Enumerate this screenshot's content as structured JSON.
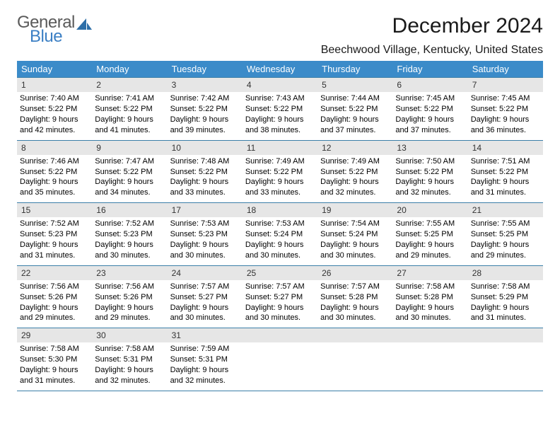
{
  "logo": {
    "text_general": "General",
    "text_blue": "Blue"
  },
  "header": {
    "title": "December 2024",
    "location": "Beechwood Village, Kentucky, United States"
  },
  "colors": {
    "header_bg": "#3b8bc9",
    "header_text": "#ffffff",
    "daynum_bg": "#e6e6e6",
    "cell_border": "#3b7fa8",
    "logo_gray": "#5a5a5a",
    "logo_blue": "#3b7fc4",
    "sail_fill": "#2e6fa8"
  },
  "weekdays": [
    "Sunday",
    "Monday",
    "Tuesday",
    "Wednesday",
    "Thursday",
    "Friday",
    "Saturday"
  ],
  "days": {
    "1": {
      "sunrise": "7:40 AM",
      "sunset": "5:22 PM",
      "daylight": "9 hours and 42 minutes."
    },
    "2": {
      "sunrise": "7:41 AM",
      "sunset": "5:22 PM",
      "daylight": "9 hours and 41 minutes."
    },
    "3": {
      "sunrise": "7:42 AM",
      "sunset": "5:22 PM",
      "daylight": "9 hours and 39 minutes."
    },
    "4": {
      "sunrise": "7:43 AM",
      "sunset": "5:22 PM",
      "daylight": "9 hours and 38 minutes."
    },
    "5": {
      "sunrise": "7:44 AM",
      "sunset": "5:22 PM",
      "daylight": "9 hours and 37 minutes."
    },
    "6": {
      "sunrise": "7:45 AM",
      "sunset": "5:22 PM",
      "daylight": "9 hours and 37 minutes."
    },
    "7": {
      "sunrise": "7:45 AM",
      "sunset": "5:22 PM",
      "daylight": "9 hours and 36 minutes."
    },
    "8": {
      "sunrise": "7:46 AM",
      "sunset": "5:22 PM",
      "daylight": "9 hours and 35 minutes."
    },
    "9": {
      "sunrise": "7:47 AM",
      "sunset": "5:22 PM",
      "daylight": "9 hours and 34 minutes."
    },
    "10": {
      "sunrise": "7:48 AM",
      "sunset": "5:22 PM",
      "daylight": "9 hours and 33 minutes."
    },
    "11": {
      "sunrise": "7:49 AM",
      "sunset": "5:22 PM",
      "daylight": "9 hours and 33 minutes."
    },
    "12": {
      "sunrise": "7:49 AM",
      "sunset": "5:22 PM",
      "daylight": "9 hours and 32 minutes."
    },
    "13": {
      "sunrise": "7:50 AM",
      "sunset": "5:22 PM",
      "daylight": "9 hours and 32 minutes."
    },
    "14": {
      "sunrise": "7:51 AM",
      "sunset": "5:22 PM",
      "daylight": "9 hours and 31 minutes."
    },
    "15": {
      "sunrise": "7:52 AM",
      "sunset": "5:23 PM",
      "daylight": "9 hours and 31 minutes."
    },
    "16": {
      "sunrise": "7:52 AM",
      "sunset": "5:23 PM",
      "daylight": "9 hours and 30 minutes."
    },
    "17": {
      "sunrise": "7:53 AM",
      "sunset": "5:23 PM",
      "daylight": "9 hours and 30 minutes."
    },
    "18": {
      "sunrise": "7:53 AM",
      "sunset": "5:24 PM",
      "daylight": "9 hours and 30 minutes."
    },
    "19": {
      "sunrise": "7:54 AM",
      "sunset": "5:24 PM",
      "daylight": "9 hours and 30 minutes."
    },
    "20": {
      "sunrise": "7:55 AM",
      "sunset": "5:25 PM",
      "daylight": "9 hours and 29 minutes."
    },
    "21": {
      "sunrise": "7:55 AM",
      "sunset": "5:25 PM",
      "daylight": "9 hours and 29 minutes."
    },
    "22": {
      "sunrise": "7:56 AM",
      "sunset": "5:26 PM",
      "daylight": "9 hours and 29 minutes."
    },
    "23": {
      "sunrise": "7:56 AM",
      "sunset": "5:26 PM",
      "daylight": "9 hours and 29 minutes."
    },
    "24": {
      "sunrise": "7:57 AM",
      "sunset": "5:27 PM",
      "daylight": "9 hours and 30 minutes."
    },
    "25": {
      "sunrise": "7:57 AM",
      "sunset": "5:27 PM",
      "daylight": "9 hours and 30 minutes."
    },
    "26": {
      "sunrise": "7:57 AM",
      "sunset": "5:28 PM",
      "daylight": "9 hours and 30 minutes."
    },
    "27": {
      "sunrise": "7:58 AM",
      "sunset": "5:28 PM",
      "daylight": "9 hours and 30 minutes."
    },
    "28": {
      "sunrise": "7:58 AM",
      "sunset": "5:29 PM",
      "daylight": "9 hours and 31 minutes."
    },
    "29": {
      "sunrise": "7:58 AM",
      "sunset": "5:30 PM",
      "daylight": "9 hours and 31 minutes."
    },
    "30": {
      "sunrise": "7:58 AM",
      "sunset": "5:31 PM",
      "daylight": "9 hours and 32 minutes."
    },
    "31": {
      "sunrise": "7:59 AM",
      "sunset": "5:31 PM",
      "daylight": "9 hours and 32 minutes."
    }
  },
  "labels": {
    "sunrise_prefix": "Sunrise: ",
    "sunset_prefix": "Sunset: ",
    "daylight_prefix": "Daylight: "
  },
  "layout": {
    "weeks": [
      [
        1,
        2,
        3,
        4,
        5,
        6,
        7
      ],
      [
        8,
        9,
        10,
        11,
        12,
        13,
        14
      ],
      [
        15,
        16,
        17,
        18,
        19,
        20,
        21
      ],
      [
        22,
        23,
        24,
        25,
        26,
        27,
        28
      ],
      [
        29,
        30,
        31,
        null,
        null,
        null,
        null
      ]
    ]
  }
}
